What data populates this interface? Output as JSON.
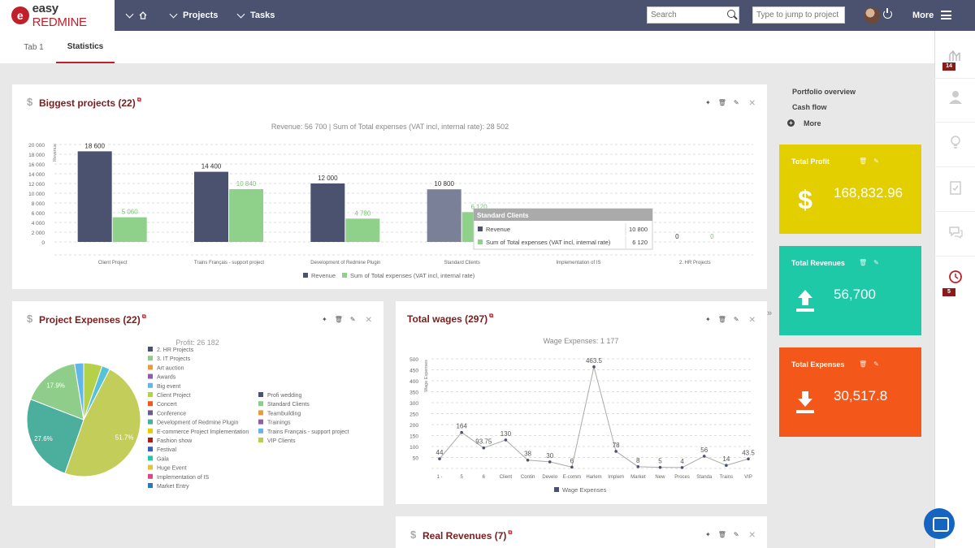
{
  "brand": {
    "logo_letter": "e",
    "name_a": "easy",
    "name_b": "REDMINE"
  },
  "nav": {
    "projects": "Projects",
    "tasks": "Tasks",
    "more": "More"
  },
  "search": {
    "placeholder": "Search",
    "jump_placeholder": "Type to jump to project"
  },
  "tabs": [
    {
      "label": "Tab 1"
    },
    {
      "label": "Statistics"
    }
  ],
  "rail": {
    "badge_1": "14",
    "badge_2": "5"
  },
  "sidebar": {
    "links": [
      "Portfolio overview",
      "Cash flow",
      "More"
    ]
  },
  "kpis": [
    {
      "title": "Total Profit",
      "value": "168,832.96",
      "color": "#e3cf00"
    },
    {
      "title": "Total Revenues",
      "value": "56,700",
      "color": "#1ec9a8"
    },
    {
      "title": "Total Expenses",
      "value": "30,517.8",
      "color": "#f4571a"
    }
  ],
  "panels": {
    "biggest": {
      "title": "Biggest projects (22)"
    },
    "expenses": {
      "title": "Project Expenses (22)"
    },
    "wages": {
      "title": "Total wages (297)"
    },
    "real": {
      "title": "Real Revenues (7)"
    }
  },
  "chart_data": [
    {
      "type": "bar",
      "title": "Revenue: 56 700 | Sum of Total expenses (VAT incl, internal rate): 28 502",
      "ylabel": "Revenue",
      "ylim": [
        0,
        20000
      ],
      "yticks": [
        "0",
        "2 000",
        "4 000",
        "6 000",
        "8 000",
        "10 000",
        "12 000",
        "14 000",
        "16 000",
        "18 000",
        "20 000"
      ],
      "categories": [
        "Client Project",
        "Trains Français - support project",
        "Development of Redmine Plugin",
        "Standard Clients",
        "Implementation of IS",
        "2. HR Projects"
      ],
      "series": [
        {
          "name": "Revenue",
          "color": "#4a5270",
          "values": [
            18600,
            14400,
            12000,
            10800,
            0,
            0
          ],
          "labels": [
            "18 600",
            "14 400",
            "12 000",
            "10 800",
            "",
            "0"
          ]
        },
        {
          "name": "Sum of Total expenses (VAT incl, internal rate)",
          "color": "#8fd08a",
          "values": [
            5060,
            10840,
            4780,
            6120,
            0,
            0
          ],
          "labels": [
            "5 060",
            "10 840",
            "4 780",
            "6 120",
            "",
            "0"
          ]
        }
      ],
      "tooltip": {
        "title": "Standard Clients",
        "rows": [
          {
            "name": "Revenue",
            "value": "10 800"
          },
          {
            "name": "Sum of Total expenses (VAT incl, internal rate)",
            "value": "6 120"
          }
        ]
      }
    },
    {
      "type": "pie",
      "title": "Profit: 26 182",
      "slices": [
        {
          "label": "51.7%",
          "value": 51.7,
          "color": "#c3cd5a"
        },
        {
          "label": "27.6%",
          "value": 27.6,
          "color": "#4cae9c"
        },
        {
          "label": "17.9%",
          "value": 17.9,
          "color": "#8fce8a"
        },
        {
          "label": "",
          "value": 2.8,
          "color": "#62b6e8"
        },
        {
          "label": "",
          "value": 5.7,
          "color": "#b5d14a"
        },
        {
          "label": "",
          "value": 2.5,
          "color": "#56c2d6"
        }
      ],
      "legend_col1": [
        {
          "name": "2. HR Projects",
          "color": "#4a5270"
        },
        {
          "name": "3. IT Projects",
          "color": "#8fce8a"
        },
        {
          "name": "Art auction",
          "color": "#e89a3c"
        },
        {
          "name": "Awards",
          "color": "#8e5fa8"
        },
        {
          "name": "Big event",
          "color": "#62b6e8"
        },
        {
          "name": "Client Project",
          "color": "#b5d14a"
        },
        {
          "name": "Concert",
          "color": "#f4571a"
        },
        {
          "name": "Conference",
          "color": "#6b5a8e"
        },
        {
          "name": "Development of Redmine Plugin",
          "color": "#4cae9c"
        },
        {
          "name": "E-commerce Project Implementation",
          "color": "#e3cf00"
        },
        {
          "name": "Fashion show",
          "color": "#a8201a"
        },
        {
          "name": "Festival",
          "color": "#3a5fb8"
        },
        {
          "name": "Gala",
          "color": "#1ec9a8"
        },
        {
          "name": "Huge Event",
          "color": "#e8c040"
        },
        {
          "name": "Implementation of IS",
          "color": "#d44a8a"
        },
        {
          "name": "Market Entry",
          "color": "#2a7ab8"
        }
      ],
      "legend_col2": [
        {
          "name": "Profi wedding",
          "color": "#4a5270"
        },
        {
          "name": "Standard Clients",
          "color": "#8fce8a"
        },
        {
          "name": "Teambuilding",
          "color": "#e89a3c"
        },
        {
          "name": "Trainings",
          "color": "#8e5fa8"
        },
        {
          "name": "Trains Français - support project",
          "color": "#62b6e8"
        },
        {
          "name": "VIP Clients",
          "color": "#b5d14a"
        }
      ]
    },
    {
      "type": "line",
      "title": "Wage Expenses: 1 177",
      "ylabel": "Wage Expenses",
      "ylim": [
        0,
        500
      ],
      "yticks": [
        "50",
        "100",
        "150",
        "200",
        "250",
        "300",
        "350",
        "400",
        "450",
        "500"
      ],
      "categories": [
        "1 -",
        "5",
        "6",
        "Client",
        "Contin",
        "Develo",
        "E-comm",
        "Harlem",
        "Implem",
        "Market",
        "New",
        "Proces",
        "Standa",
        "Trains",
        "VIP"
      ],
      "series": [
        {
          "name": "Wage Expenses",
          "color": "#4a5270",
          "values": [
            44,
            164,
            93.75,
            130,
            38,
            30,
            6,
            463.5,
            78,
            8,
            5,
            4,
            56,
            14,
            43.5
          ],
          "labels": [
            "44",
            "164",
            "93.75",
            "130",
            "38",
            "30",
            "6",
            "463.5",
            "78",
            "8",
            "5",
            "4",
            "56",
            "14",
            "43.5"
          ]
        }
      ]
    }
  ]
}
